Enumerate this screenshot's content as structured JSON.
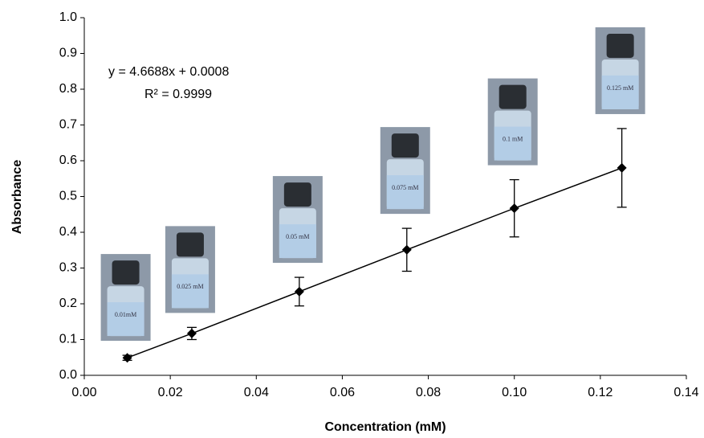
{
  "chart_data": {
    "type": "scatter",
    "x_label": "Concentration (mM)",
    "y_label": "Absorbance",
    "annotations": [
      "y = 4.6688x + 0.0008",
      "R² = 0.9999"
    ],
    "image_labels": [
      "0.01mM",
      "0.025 mM",
      "0.05 mM",
      "0.075 mM",
      "0.1 mM",
      "0.125 mM"
    ],
    "x": [
      0.01,
      0.025,
      0.05,
      0.075,
      0.1,
      0.125
    ],
    "series": [
      {
        "color": "#000000",
        "values": [
          0.049,
          0.117,
          0.234,
          0.351,
          0.467,
          0.58
        ],
        "errors": [
          0.007,
          0.017,
          0.04,
          0.06,
          0.08,
          0.11
        ]
      }
    ],
    "xlim": [
      0,
      0.14
    ],
    "xticks": [
      {
        "value": 0,
        "label": "0.00"
      },
      0.02,
      0.04,
      0.06,
      0.08,
      {
        "value": 0.1,
        "label": "0.10"
      },
      0.12,
      0.14
    ],
    "ylim": [
      0,
      1
    ],
    "yticks": [
      {
        "value": 0,
        "label": "0.0"
      },
      0.1,
      0.2,
      0.3,
      0.4,
      0.5,
      0.6,
      0.7,
      0.8,
      0.9,
      {
        "value": 1,
        "label": "1.0"
      }
    ],
    "grid": false
  }
}
